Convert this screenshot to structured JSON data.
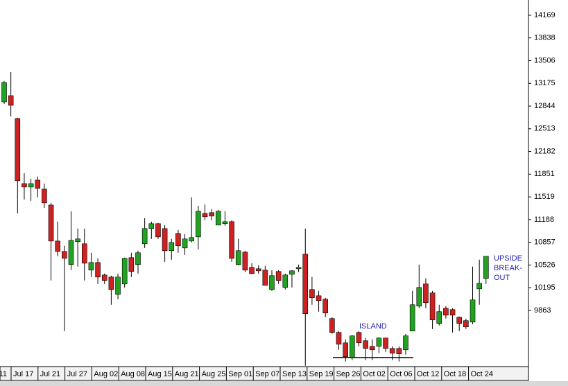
{
  "chart_data": {
    "type": "candlestick",
    "x_labels": [
      "11",
      "Jul 17",
      "Jul 21",
      "Jul 27",
      "Aug 02",
      "Aug 08",
      "Aug 15",
      "Aug 21",
      "Aug 25",
      "Sep 01",
      "Sep 07",
      "Sep 13",
      "Sep 19",
      "Sep 26",
      "Oct 02",
      "Oct 06",
      "Oct 12",
      "Oct 18",
      "Oct 24"
    ],
    "ylim": [
      9054,
      14391
    ],
    "yticks": [
      14169,
      13838,
      13506,
      13175,
      12844,
      12513,
      12182,
      11851,
      11519,
      11188,
      10857,
      10526,
      10195,
      9863
    ],
    "up_color": "#22a122",
    "down_color": "#cc2222",
    "annotations": {
      "island": "ISLAND",
      "breakout": [
        "UPSIDE",
        "BREAK-",
        "OUT"
      ]
    },
    "open": [
      12905,
      12996,
      12663,
      11713,
      11663,
      11764,
      11633,
      11400,
      10875,
      10724,
      10532,
      10865,
      10835,
      10451,
      10562,
      10380,
      10350,
      10097,
      10249,
      10633,
      10532,
      10835,
      11057,
      11128,
      11057,
      10734,
      10986,
      10774,
      10875,
      10936,
      11279,
      11290,
      11108,
      11128,
      11158,
      10532,
      10714,
      10491,
      10471,
      10451,
      10168,
      10431,
      10198,
      10390,
      10471,
      10684,
      10168,
      10077,
      10027,
      9744,
      9542,
      9390,
      9178,
      9542,
      9421,
      9340,
      9340,
      9461,
      9309,
      9309,
      9289,
      9562,
      9926,
      10249,
      10118,
      9673,
      9895,
      9875,
      9764,
      9714,
      9693,
      10178,
      10330
    ],
    "high": [
      13208,
      13340,
      12673,
      11865,
      11784,
      11815,
      11714,
      11431,
      11158,
      10805,
      11310,
      11057,
      11057,
      10704,
      10623,
      10401,
      10370,
      10400,
      10633,
      10704,
      10734,
      11209,
      11158,
      11138,
      11108,
      10906,
      11037,
      10976,
      11512,
      11390,
      11410,
      11340,
      11330,
      11310,
      11178,
      10906,
      10734,
      10552,
      10522,
      10512,
      10451,
      10451,
      10400,
      10451,
      10532,
      11057,
      10350,
      10148,
      10047,
      9764,
      9562,
      9441,
      9502,
      9562,
      9461,
      9441,
      9471,
      9461,
      9340,
      9340,
      9522,
      10148,
      10532,
      10330,
      10148,
      9946,
      9926,
      9895,
      9774,
      9744,
      10502,
      10603,
      10653
    ],
    "low": [
      12875,
      12693,
      11279,
      11481,
      11461,
      11511,
      11360,
      10300,
      10653,
      9562,
      10451,
      10502,
      10300,
      10350,
      10249,
      10249,
      9946,
      10027,
      10198,
      10350,
      10400,
      10774,
      10906,
      10906,
      10572,
      10603,
      10704,
      10673,
      10855,
      10754,
      11178,
      11178,
      11108,
      11098,
      10572,
      10522,
      10421,
      10400,
      10400,
      10229,
      10148,
      10249,
      10168,
      10198,
      10421,
      9057,
      9946,
      9845,
      9764,
      9522,
      9289,
      9117,
      9138,
      9340,
      9138,
      9138,
      9239,
      9259,
      9138,
      9117,
      9219,
      9562,
      9895,
      9895,
      9592,
      9643,
      9744,
      9542,
      9562,
      9592,
      9663,
      9946,
      10249
    ],
    "close": [
      13188,
      12855,
      11754,
      11663,
      11713,
      11643,
      11431,
      10875,
      10724,
      10623,
      10885,
      10906,
      10552,
      10562,
      10350,
      10300,
      10168,
      10350,
      10623,
      10431,
      10704,
      11057,
      11128,
      10936,
      10734,
      10855,
      10805,
      10906,
      10926,
      11310,
      11229,
      11239,
      11310,
      11158,
      10623,
      10734,
      10451,
      10400,
      10441,
      10229,
      10370,
      10300,
      10380,
      10441,
      10491,
      9815,
      10047,
      10006,
      9825,
      9542,
      9370,
      9188,
      9492,
      9390,
      9309,
      9289,
      9461,
      9309,
      9239,
      9229,
      9492,
      9946,
      10198,
      9976,
      9724,
      9845,
      9794,
      9794,
      9673,
      9623,
      10017,
      10259,
      10653
    ]
  }
}
